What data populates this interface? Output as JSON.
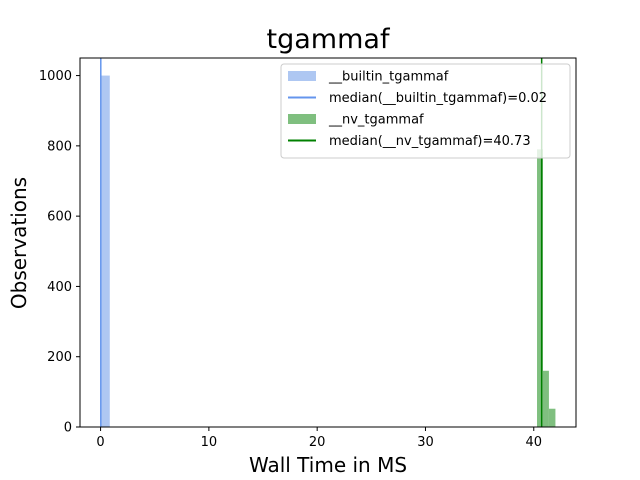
{
  "chart_data": {
    "type": "bar",
    "title": "tgammaf",
    "xlabel": "Wall Time in MS",
    "ylabel": "Observations",
    "xlim": [
      -1.9,
      43.9
    ],
    "ylim": [
      0,
      1050
    ],
    "xticks": [
      0,
      10,
      20,
      30,
      40
    ],
    "yticks": [
      0,
      200,
      400,
      600,
      800,
      1000
    ],
    "grid": false,
    "legend_position": "top-right",
    "histograms": [
      {
        "name": "__builtin_tgammaf",
        "color": "#aec7f2",
        "bins": [
          {
            "x0": 0.0,
            "x1": 0.85,
            "count": 1000
          }
        ]
      },
      {
        "name": "__nv_tgammaf",
        "color": "#7fbf7f",
        "bins": [
          {
            "x0": 40.3,
            "x1": 40.85,
            "count": 790
          },
          {
            "x0": 40.85,
            "x1": 41.4,
            "count": 160
          },
          {
            "x0": 41.4,
            "x1": 42.0,
            "count": 52
          }
        ]
      }
    ],
    "medians": [
      {
        "label": "median(__builtin_tgammaf)=0.02",
        "value": 0.02,
        "color": "#6495ed"
      },
      {
        "label": "median(__nv_tgammaf)=40.73",
        "value": 40.73,
        "color": "#008000"
      }
    ],
    "legend": [
      {
        "label": "__builtin_tgammaf",
        "kind": "patch",
        "color": "#aec7f2"
      },
      {
        "label": "median(__builtin_tgammaf)=0.02",
        "kind": "line",
        "color": "#6495ed"
      },
      {
        "label": "__nv_tgammaf",
        "kind": "patch",
        "color": "#7fbf7f"
      },
      {
        "label": "median(__nv_tgammaf)=40.73",
        "kind": "line",
        "color": "#008000"
      }
    ]
  }
}
